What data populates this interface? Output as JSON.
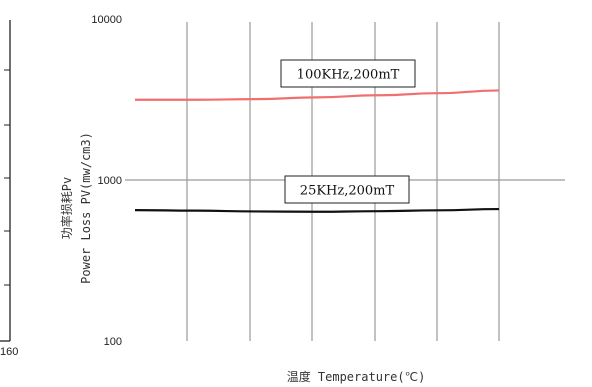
{
  "chart_data": [
    {
      "type": "line",
      "partial": true,
      "note_visible": "left edge of a neighbouring chart",
      "x_tick_labels": [
        "160"
      ]
    },
    {
      "type": "line",
      "title": "",
      "xlabel": "温度 Temperature(℃)",
      "ylabel_line1": "功率损耗Pv",
      "ylabel_line2": "Power Loss PV(mw/cm3)",
      "y_scale": "log",
      "ylim": [
        100,
        10000
      ],
      "y_tick_labels": [
        "10000",
        "1000",
        "100"
      ],
      "grid": true,
      "series": [
        {
          "name": "100KHz,200mT",
          "color": "#f07070",
          "x": [
            0,
            1,
            2,
            3,
            4,
            5,
            6
          ],
          "y": [
            3150,
            3150,
            3180,
            3260,
            3360,
            3460,
            3600
          ]
        },
        {
          "name": "25KHz,200mT",
          "color": "#111111",
          "x": [
            0,
            1,
            2,
            3,
            4,
            5,
            6
          ],
          "y": [
            650,
            645,
            638,
            635,
            640,
            648,
            660
          ]
        }
      ]
    }
  ]
}
